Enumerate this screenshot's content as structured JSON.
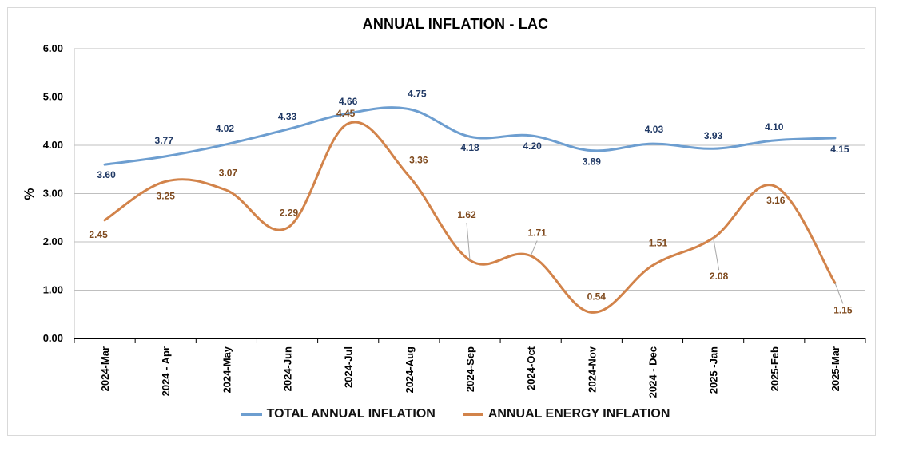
{
  "chart_data": {
    "type": "line",
    "title": "ANNUAL INFLATION - LAC",
    "ylabel": "%",
    "xlabel": "",
    "ylim": [
      0,
      6
    ],
    "yticks": [
      "0.00",
      "1.00",
      "2.00",
      "3.00",
      "4.00",
      "5.00",
      "6.00"
    ],
    "grid": true,
    "legend_position": "bottom",
    "categories": [
      "2024-Mar",
      "2024 - Apr",
      "2024-May",
      "2024-Jun",
      "2024-Jul",
      "2024-Aug",
      "2024-Sep",
      "2024-Oct",
      "2024-Nov",
      "2024 - Dec",
      "2025 -Jan",
      "2025-Feb",
      "2025-Mar"
    ],
    "series": [
      {
        "name": "TOTAL ANNUAL INFLATION",
        "color": "#6d9ed0",
        "label_color": "#1f3864",
        "values": [
          3.6,
          3.77,
          4.02,
          4.33,
          4.66,
          4.75,
          4.18,
          4.2,
          3.89,
          4.03,
          3.93,
          4.1,
          4.15
        ],
        "labels": [
          "3.60",
          "3.77",
          "4.02",
          "4.33",
          "4.66",
          "4.75",
          "4.18",
          "4.20",
          "3.89",
          "4.03",
          "3.93",
          "4.10",
          "4.15"
        ]
      },
      {
        "name": "ANNUAL ENERGY INFLATION",
        "color": "#d2834a",
        "label_color": "#7f4a1e",
        "values": [
          2.45,
          3.25,
          3.07,
          2.29,
          4.45,
          3.36,
          1.62,
          1.71,
          0.54,
          1.51,
          2.08,
          3.16,
          1.15
        ],
        "labels": [
          "2.45",
          "3.25",
          "3.07",
          "2.29",
          "4.45",
          "3.36",
          "1.62",
          "1.71",
          "0.54",
          "1.51",
          "2.08",
          "3.16",
          "1.15"
        ]
      }
    ]
  }
}
